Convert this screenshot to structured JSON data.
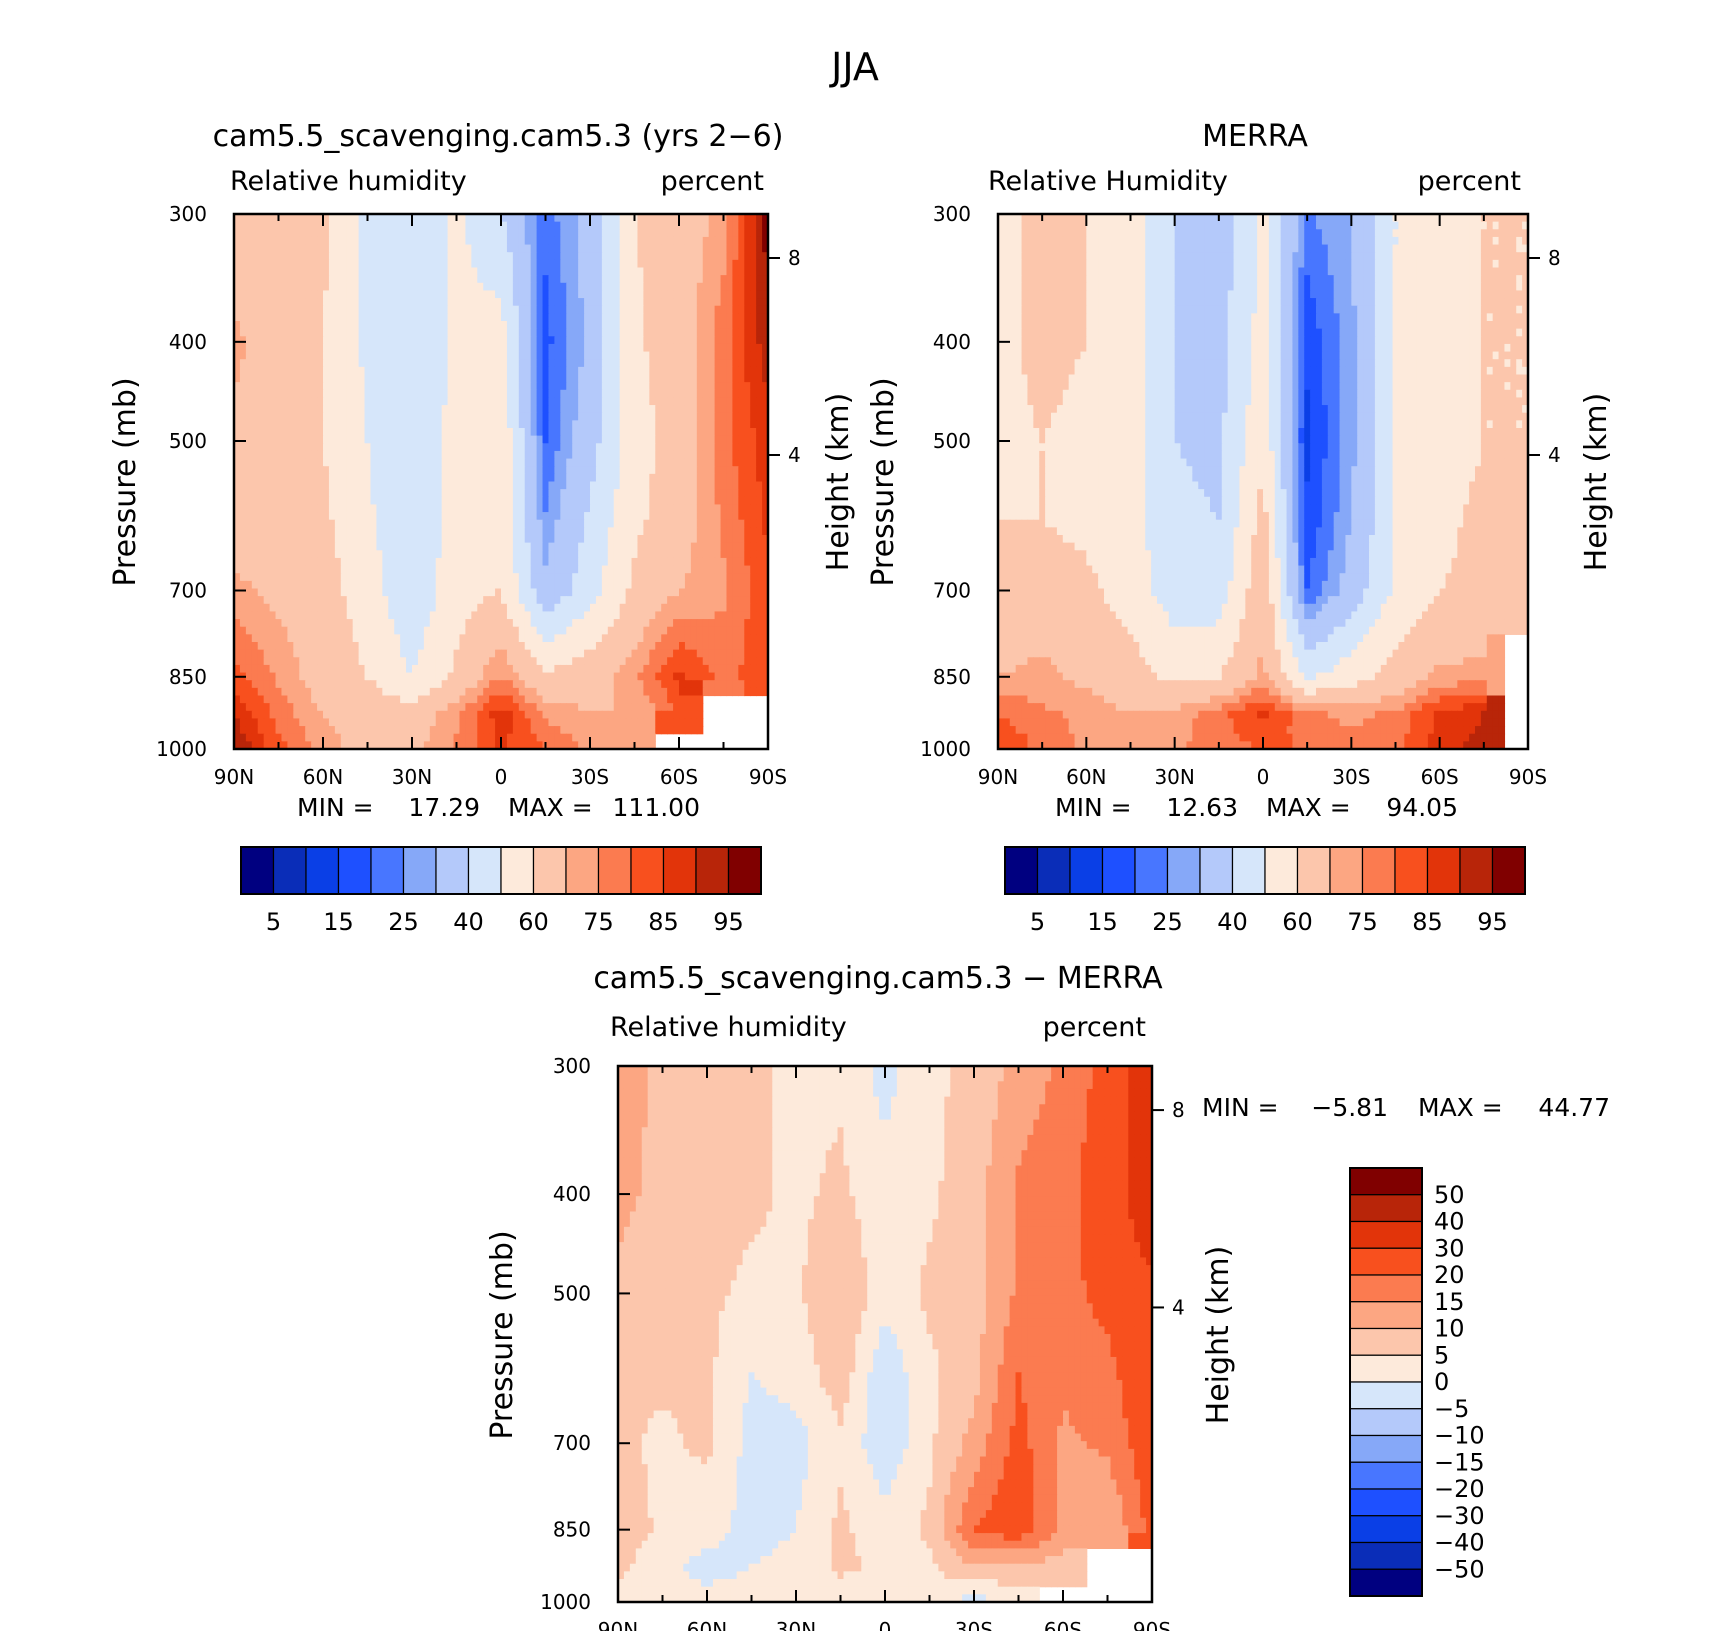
{
  "figure": {
    "title": "JJA"
  },
  "colors": {
    "abs_bins": [
      "#000080",
      "#0a2db8",
      "#0a3fe6",
      "#1e50ff",
      "#4876ff",
      "#86a8f8",
      "#b4c9fa",
      "#d6e6fa",
      "#fdeadb",
      "#fcc6ac",
      "#fca682",
      "#fb7b50",
      "#f8501e",
      "#e2340a",
      "#b82509",
      "#800000"
    ],
    "diff_bins": [
      "#000080",
      "#0a2db8",
      "#0a3fe6",
      "#1e50ff",
      "#4876ff",
      "#86a8f8",
      "#b4c9fa",
      "#d6e6fa",
      "#fdeadb",
      "#fcc6ac",
      "#fca682",
      "#fb7b50",
      "#f8501e",
      "#e2340a",
      "#b82509",
      "#800000"
    ]
  },
  "chart_data": [
    {
      "id": "model",
      "type": "heatmap",
      "title": "cam5.5_scavenging.cam5.3 (yrs 2−6)",
      "subtitle_left": "Relative humidity",
      "subtitle_right": "percent",
      "ylabel": "Pressure (mb)",
      "y2label": "Height (km)",
      "x_ticks": [
        "90N",
        "60N",
        "30N",
        "0",
        "30S",
        "60S",
        "90S"
      ],
      "y_ticks": [
        "300",
        "400",
        "500",
        "700",
        "850",
        "1000"
      ],
      "y2_ticks": [
        "8",
        "4"
      ],
      "min_label": "MIN =",
      "min_value": "17.29",
      "max_label": "MAX =",
      "max_value": "111.00",
      "colorbar_labels": [
        "5",
        "15",
        "25",
        "40",
        "60",
        "75",
        "85",
        "95"
      ],
      "x_lat": [
        90,
        75,
        60,
        45,
        30,
        15,
        0,
        -15,
        -30,
        -45,
        -60,
        -75,
        -90
      ],
      "pressure": [
        300,
        400,
        500,
        600,
        700,
        850,
        925,
        1000
      ],
      "rh": [
        [
          62,
          68,
          62,
          48,
          40,
          52,
          40,
          22,
          34,
          60,
          65,
          72,
          98
        ],
        [
          72,
          64,
          60,
          48,
          40,
          53,
          55,
          18,
          32,
          58,
          66,
          78,
          93
        ],
        [
          68,
          68,
          60,
          50,
          40,
          54,
          58,
          20,
          36,
          56,
          64,
          78,
          88
        ],
        [
          64,
          66,
          62,
          52,
          40,
          56,
          58,
          26,
          42,
          58,
          66,
          76,
          86
        ],
        [
          72,
          68,
          64,
          55,
          42,
          56,
          60,
          32,
          46,
          62,
          70,
          74,
          84
        ],
        [
          82,
          74,
          66,
          60,
          50,
          62,
          76,
          62,
          66,
          74,
          86,
          78,
          84
        ],
        [
          90,
          78,
          70,
          66,
          64,
          74,
          88,
          74,
          70,
          70,
          80,
          null,
          null
        ],
        [
          95,
          82,
          72,
          68,
          68,
          76,
          86,
          80,
          74,
          72,
          null,
          null,
          null
        ]
      ]
    },
    {
      "id": "obs",
      "type": "heatmap",
      "title": "MERRA",
      "subtitle_left": "Relative Humidity",
      "subtitle_right": "percent",
      "ylabel": "Pressure (mb)",
      "y2label": "Height (km)",
      "x_ticks": [
        "90N",
        "60N",
        "30N",
        "0",
        "30S",
        "60S",
        "90S"
      ],
      "y_ticks": [
        "300",
        "400",
        "500",
        "700",
        "850",
        "1000"
      ],
      "y2_ticks": [
        "8",
        "4"
      ],
      "min_label": "MIN =",
      "min_value": "12.63",
      "max_label": "MAX =",
      "max_value": "94.05",
      "colorbar_labels": [
        "5",
        "15",
        "25",
        "40",
        "60",
        "75",
        "85",
        "95"
      ],
      "x_lat": [
        90,
        75,
        60,
        45,
        30,
        15,
        0,
        -15,
        -30,
        -45,
        -60,
        -75,
        -90
      ],
      "pressure": [
        300,
        400,
        500,
        600,
        700,
        850,
        925,
        1000
      ],
      "rh": [
        [
          58,
          62,
          60,
          56,
          40,
          34,
          52,
          24,
          30,
          50,
          56,
          60,
          60
        ],
        [
          58,
          62,
          60,
          56,
          40,
          36,
          54,
          16,
          28,
          50,
          56,
          60,
          60
        ],
        [
          58,
          60,
          58,
          54,
          40,
          38,
          58,
          14,
          28,
          50,
          56,
          60,
          60
        ],
        [
          60,
          60,
          58,
          54,
          42,
          40,
          64,
          16,
          30,
          50,
          58,
          62,
          62
        ],
        [
          62,
          64,
          62,
          56,
          44,
          44,
          68,
          20,
          34,
          52,
          60,
          62,
          62
        ],
        [
          70,
          72,
          68,
          64,
          58,
          60,
          72,
          48,
          56,
          64,
          72,
          72,
          null
        ],
        [
          80,
          76,
          74,
          70,
          72,
          78,
          86,
          76,
          74,
          76,
          86,
          90,
          null
        ],
        [
          86,
          78,
          74,
          72,
          74,
          78,
          80,
          80,
          76,
          78,
          88,
          92,
          null
        ]
      ]
    },
    {
      "id": "diff",
      "type": "heatmap",
      "title": "cam5.5_scavenging.cam5.3 − MERRA",
      "subtitle_left": "Relative humidity",
      "subtitle_right": "percent",
      "ylabel": "Pressure (mb)",
      "y2label": "Height (km)",
      "x_ticks": [
        "90N",
        "60N",
        "30N",
        "0",
        "30S",
        "60S",
        "90S"
      ],
      "y_ticks": [
        "300",
        "400",
        "500",
        "700",
        "850",
        "1000"
      ],
      "y2_ticks": [
        "8",
        "4"
      ],
      "min_label": "MIN =",
      "min_value": "−5.81",
      "max_label": "MAX =",
      "max_value": "44.77",
      "colorbar_labels": [
        "50",
        "40",
        "30",
        "20",
        "15",
        "10",
        "5",
        "0",
        "−5",
        "−10",
        "−15",
        "−20",
        "−30",
        "−40",
        "−50"
      ],
      "x_lat": [
        90,
        75,
        60,
        45,
        30,
        15,
        0,
        -15,
        -30,
        -45,
        -60,
        -75,
        -90
      ],
      "pressure": [
        300,
        400,
        500,
        600,
        700,
        850,
        925,
        1000
      ],
      "dRH": [
        [
          14,
          8,
          6,
          6,
          4,
          4,
          -2,
          4,
          6,
          12,
          16,
          22,
          40
        ],
        [
          12,
          8,
          6,
          6,
          4,
          6,
          2,
          4,
          8,
          16,
          18,
          24,
          38
        ],
        [
          8,
          6,
          6,
          4,
          4,
          10,
          2,
          6,
          8,
          16,
          18,
          22,
          28
        ],
        [
          6,
          6,
          6,
          0,
          2,
          8,
          -4,
          4,
          8,
          20,
          16,
          18,
          26
        ],
        [
          6,
          4,
          6,
          -2,
          -2,
          4,
          -4,
          4,
          12,
          22,
          14,
          16,
          24
        ],
        [
          8,
          4,
          2,
          -2,
          0,
          6,
          2,
          6,
          20,
          24,
          14,
          10,
          22
        ],
        [
          6,
          2,
          -2,
          0,
          2,
          6,
          4,
          4,
          10,
          8,
          8,
          null,
          null
        ],
        [
          4,
          2,
          2,
          2,
          2,
          2,
          2,
          2,
          -2,
          2,
          null,
          null,
          null
        ]
      ]
    }
  ]
}
